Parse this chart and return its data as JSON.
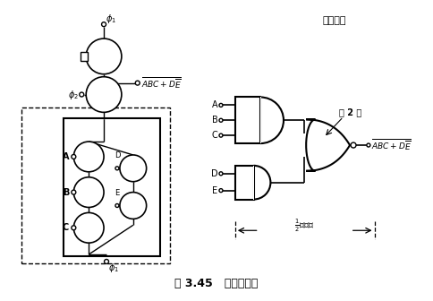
{
  "title": "图 3.45   门电路举例",
  "equiv_label": "等效电路",
  "phase2_label": "第2类",
  "bg_color": "#ffffff",
  "line_color": "#000000",
  "fig_width": 4.85,
  "fig_height": 3.36,
  "dpi": 100
}
